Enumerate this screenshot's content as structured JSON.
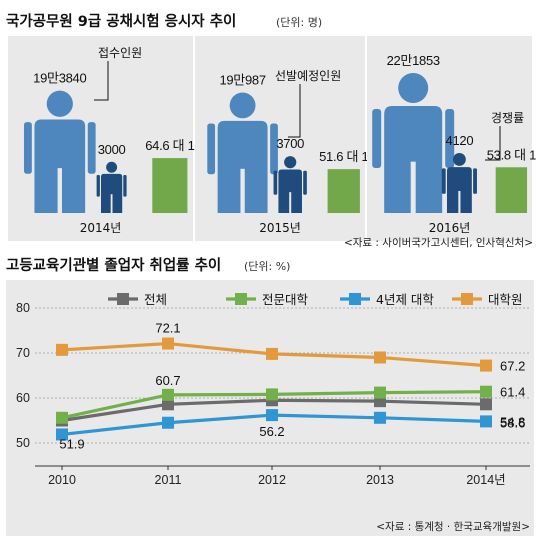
{
  "top": {
    "title": "국가공무원 9급 공채시험 응시자 추이",
    "unit": "(단위: 명)",
    "callouts": {
      "applicants": "접수인원",
      "planned": "선발예정인원",
      "ratio": "경쟁률"
    },
    "source": "<자료 : 사이버국가고시센터, 인사혁신처>"
  },
  "bottom": {
    "title": "고등교육기관별 졸업자 취업률 추이",
    "unit": "(단위: %)",
    "source": "<자료 : 통계청 · 한국교육개발원>"
  },
  "colors": {
    "person_light": "#4d87bd",
    "person_dark": "#1f4c7c",
    "ratio_bar": "#72a84a",
    "panel_bg": "#e9e9e9",
    "series": [
      "#6b6b6b",
      "#72b04a",
      "#2f95d3",
      "#e39a3c"
    ]
  },
  "chart_data": [
    {
      "type": "bar",
      "title": "국가공무원 9급 공채시험 응시자 추이",
      "unit": "(단위: 명)",
      "categories": [
        "2014년",
        "2015년",
        "2016년"
      ],
      "series": [
        {
          "name": "접수인원",
          "values": [
            193840,
            190987,
            221853
          ],
          "labels": [
            "19만3840",
            "19만987",
            "22만1853"
          ]
        },
        {
          "name": "선발예정인원",
          "values": [
            3000,
            3700,
            4120
          ],
          "labels": [
            "3000",
            "3700",
            "4120"
          ]
        },
        {
          "name": "경쟁률",
          "values": [
            64.6,
            51.6,
            53.8
          ],
          "labels": [
            "64.6 대 1",
            "51.6 대 1",
            "53.8 대 1"
          ]
        }
      ]
    },
    {
      "type": "line",
      "title": "고등교육기관별 졸업자 취업률 추이",
      "unit": "(단위: %)",
      "x": [
        "2010",
        "2011",
        "2012",
        "2013",
        "2014년"
      ],
      "ylim": [
        50,
        80
      ],
      "yticks": [
        "50",
        "60",
        "70",
        "80"
      ],
      "grid": true,
      "legend": "top",
      "series": [
        {
          "name": "전체",
          "values": [
            55.0,
            58.6,
            59.5,
            59.3,
            58.6
          ],
          "labels": [
            "",
            "",
            "",
            "",
            "58.6"
          ]
        },
        {
          "name": "전문대학",
          "values": [
            55.6,
            60.7,
            60.8,
            61.2,
            61.4
          ],
          "labels": [
            "",
            "60.7",
            "",
            "",
            "61.4"
          ]
        },
        {
          "name": "4년제 대학",
          "values": [
            51.9,
            54.5,
            56.2,
            55.6,
            54.8
          ],
          "labels": [
            "51.9",
            "",
            "56.2",
            "",
            "54.8"
          ]
        },
        {
          "name": "대학원",
          "values": [
            70.7,
            72.1,
            69.8,
            69.0,
            67.2
          ],
          "labels": [
            "",
            "72.1",
            "",
            "",
            "67.2"
          ]
        }
      ]
    }
  ]
}
